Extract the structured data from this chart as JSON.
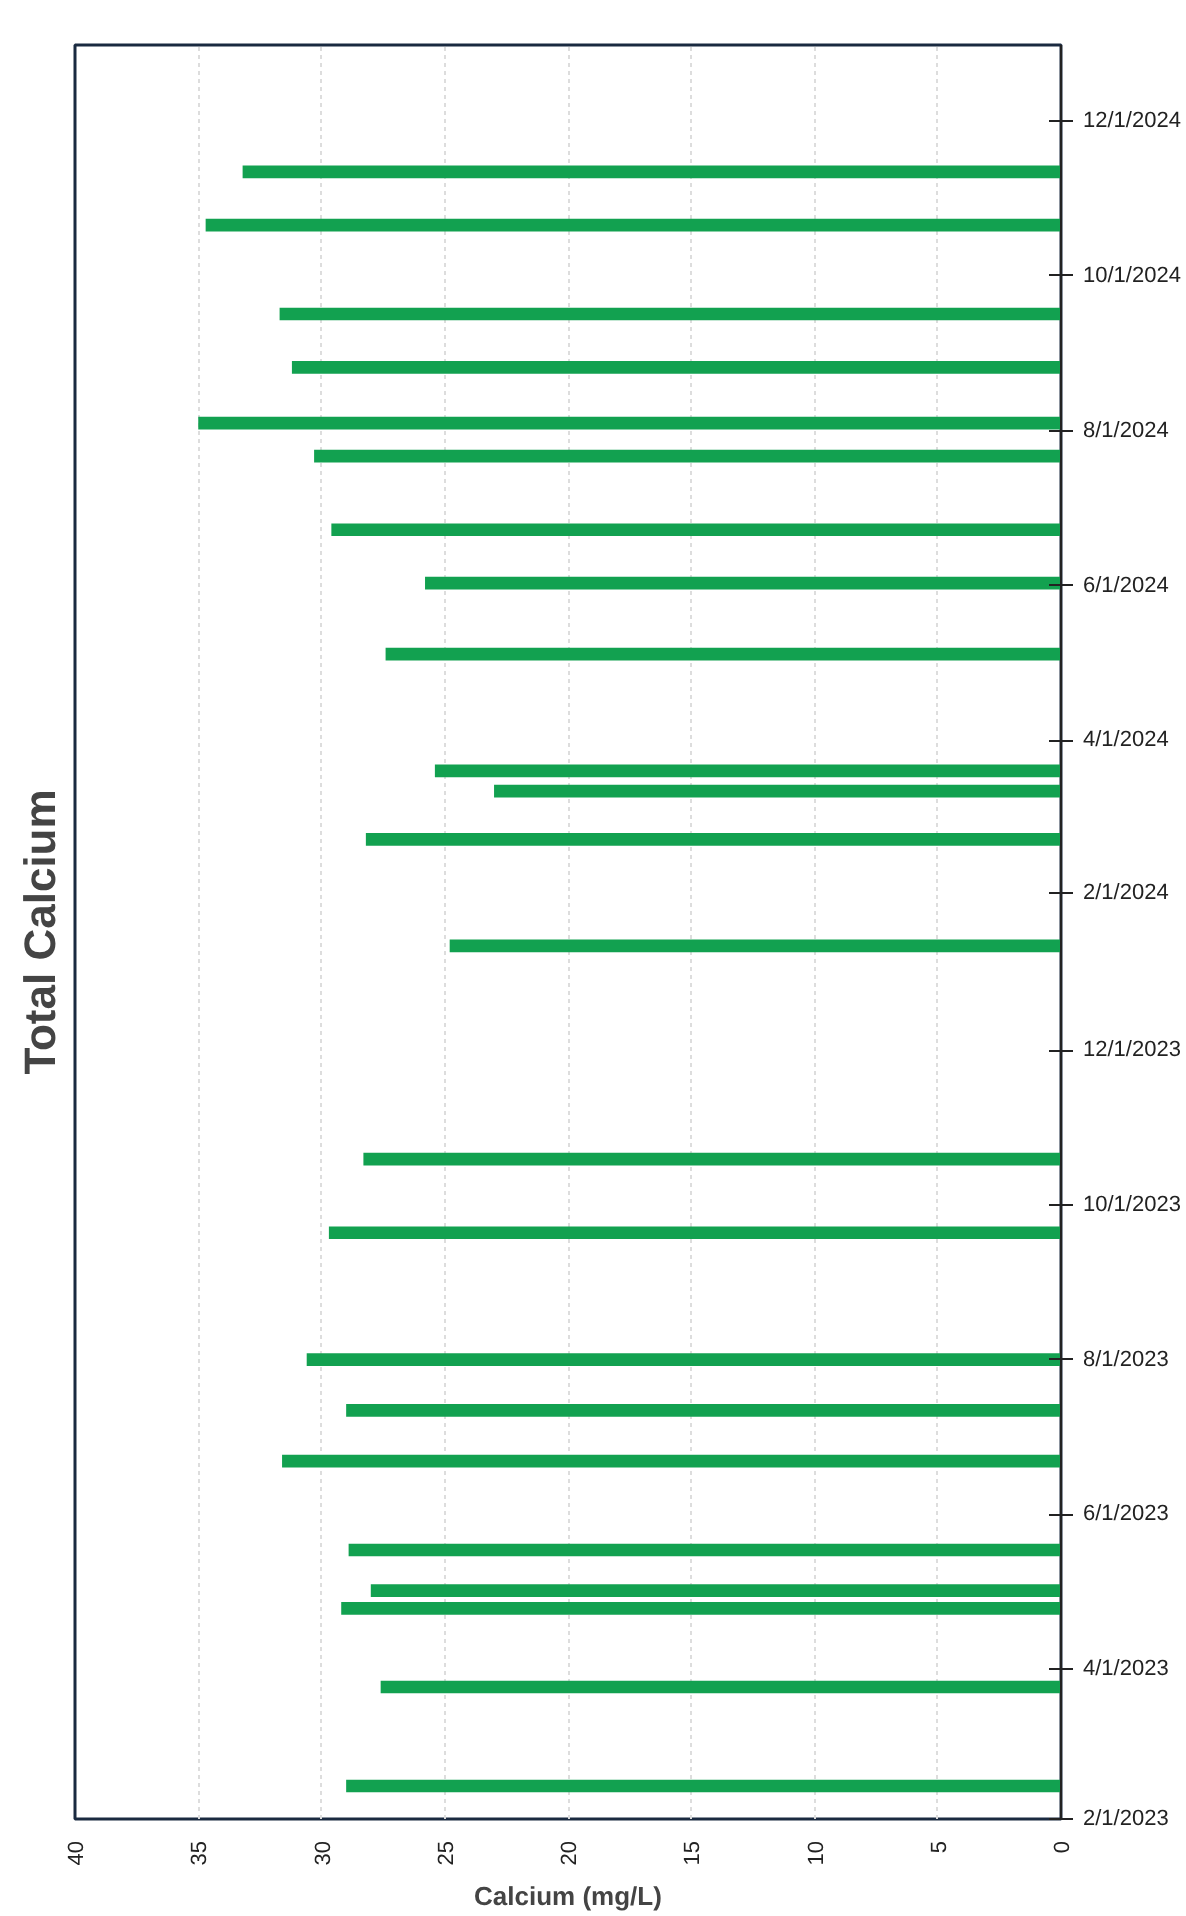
{
  "chart_data": {
    "type": "bar",
    "orientation": "horizontal",
    "title": "Total Calcium",
    "xlabel": "Calcium (mg/L)",
    "x": [
      "2023-02-14",
      "2023-03-25",
      "2023-04-25",
      "2023-05-02",
      "2023-05-18",
      "2023-06-22",
      "2023-07-12",
      "2023-08-01",
      "2023-09-20",
      "2023-10-19",
      "2024-01-11",
      "2024-02-22",
      "2024-03-12",
      "2024-03-20",
      "2024-05-05",
      "2024-06-02",
      "2024-06-23",
      "2024-07-22",
      "2024-08-04",
      "2024-08-26",
      "2024-09-16",
      "2024-10-21",
      "2024-11-11"
    ],
    "values": [
      29.0,
      27.6,
      29.2,
      28.0,
      28.9,
      31.6,
      29.0,
      30.6,
      29.7,
      28.3,
      24.8,
      28.2,
      23.0,
      25.4,
      27.4,
      25.8,
      29.6,
      30.3,
      35.0,
      31.2,
      31.7,
      34.7,
      33.2
    ],
    "color": "#12a150",
    "xlim": [
      40,
      0
    ],
    "xticks": [
      0,
      5,
      10,
      15,
      20,
      25,
      30,
      35,
      40
    ],
    "ylim": [
      "2023-02-01",
      "2024-12-31"
    ],
    "yticks": [
      {
        "value": "2023-02-01",
        "label": "2/1/2023"
      },
      {
        "value": "2023-04-01",
        "label": "4/1/2023"
      },
      {
        "value": "2023-06-01",
        "label": "6/1/2023"
      },
      {
        "value": "2023-08-01",
        "label": "8/1/2023"
      },
      {
        "value": "2023-10-01",
        "label": "10/1/2023"
      },
      {
        "value": "2023-12-01",
        "label": "12/1/2023"
      },
      {
        "value": "2024-02-01",
        "label": "2/1/2024"
      },
      {
        "value": "2024-04-01",
        "label": "4/1/2024"
      },
      {
        "value": "2024-06-01",
        "label": "6/1/2024"
      },
      {
        "value": "2024-08-01",
        "label": "8/1/2024"
      },
      {
        "value": "2024-10-01",
        "label": "10/1/2024"
      },
      {
        "value": "2024-12-01",
        "label": "12/1/2024"
      }
    ],
    "grid": "x"
  }
}
